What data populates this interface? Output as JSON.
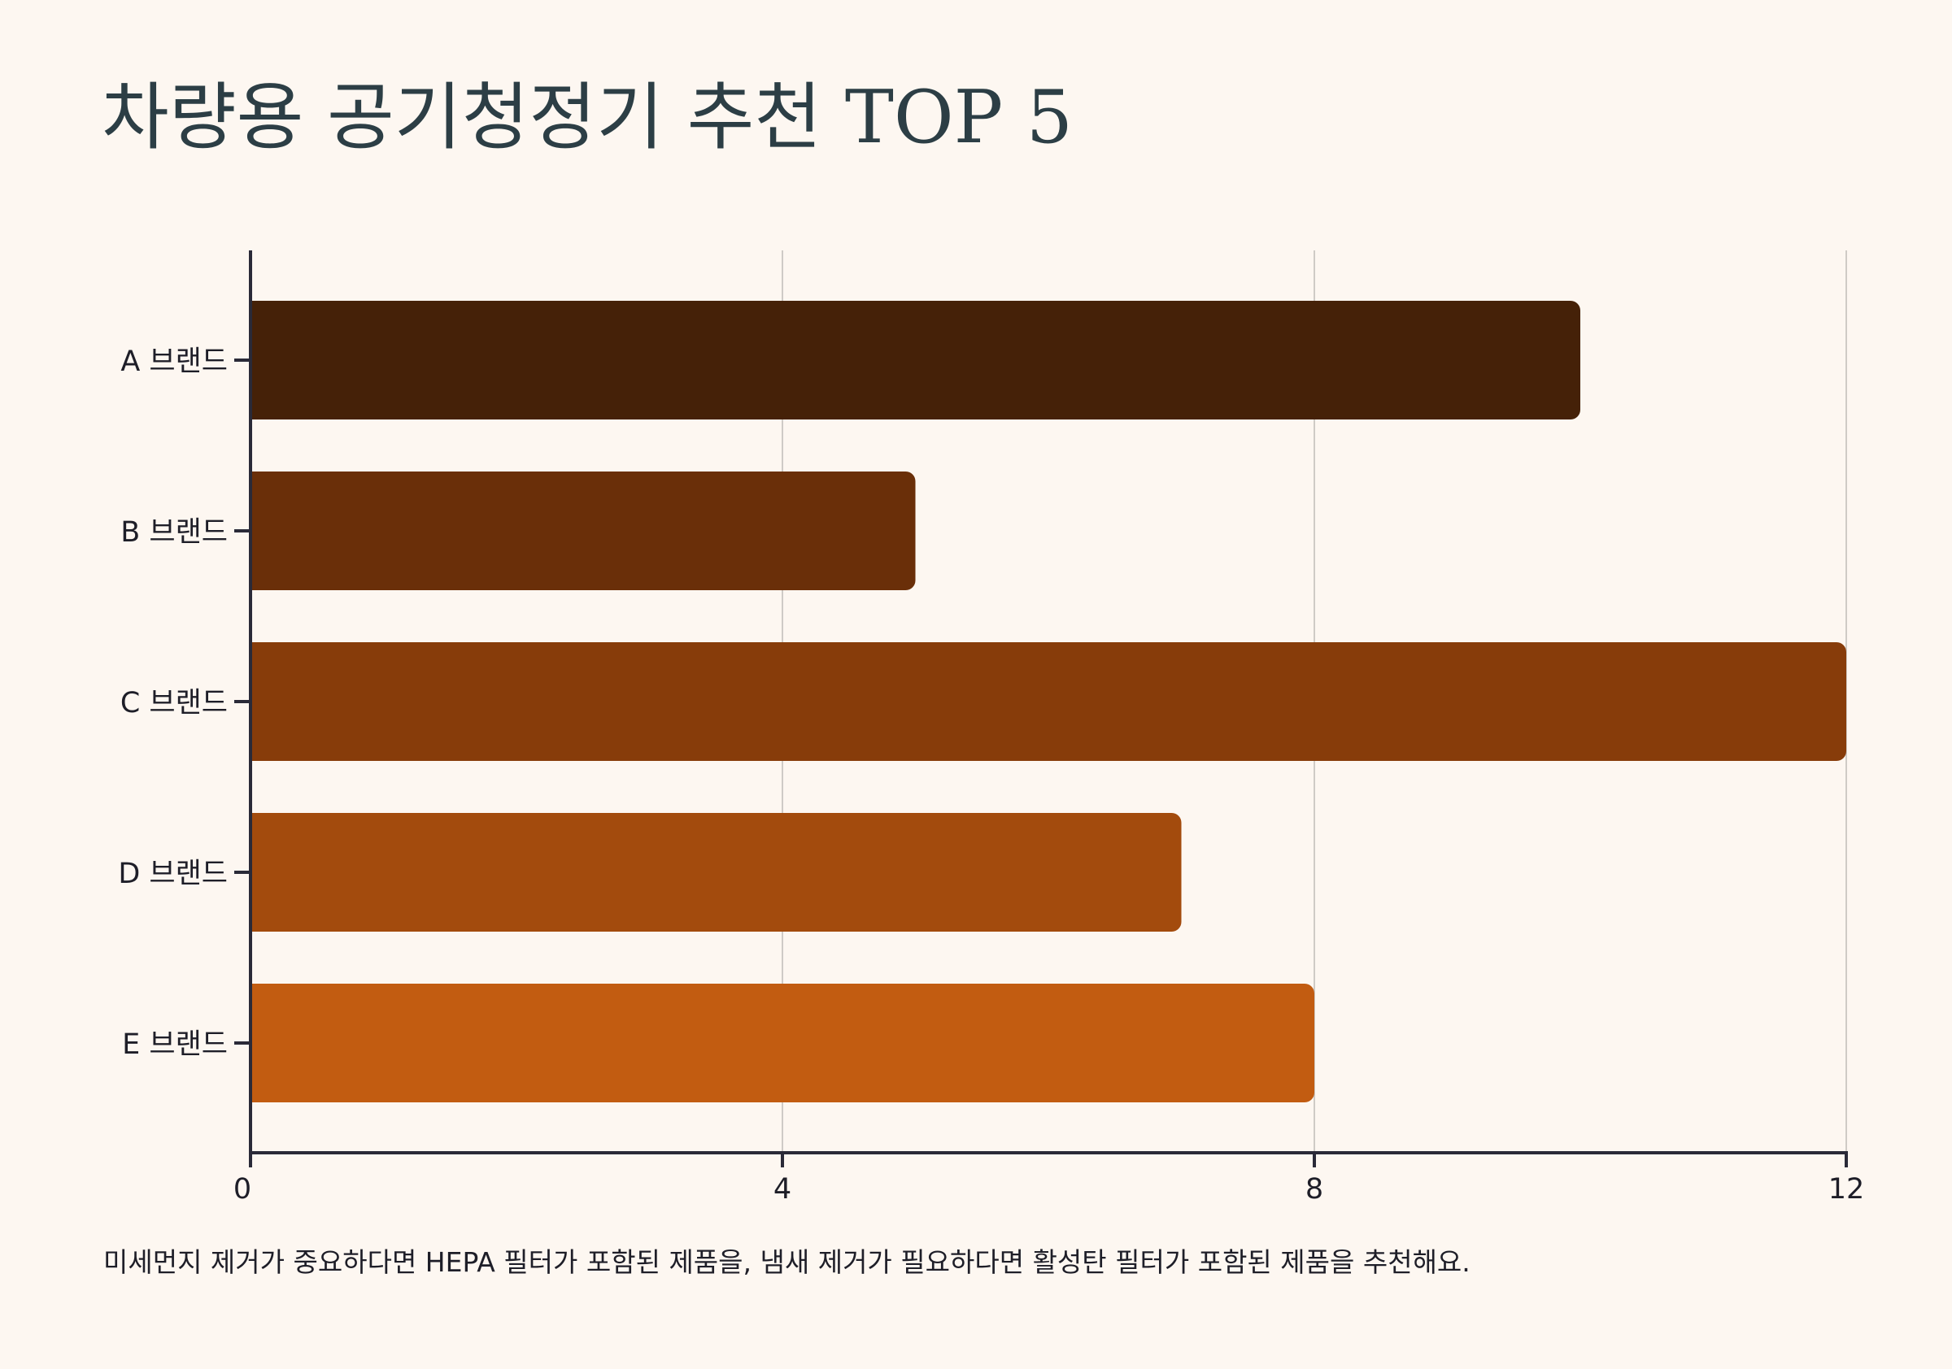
{
  "title": "차량용 공기청정기 추천 TOP 5",
  "footnote": "미세먼지 제거가 중요하다면 HEPA 필터가 포함된 제품을, 냄새 제거가 필요하다면 활성탄 필터가 포함된 제품을 추천해요.",
  "chart_data": {
    "type": "bar",
    "orientation": "horizontal",
    "title": "차량용 공기청정기 추천 TOP 5",
    "xlabel": "",
    "ylabel": "",
    "categories": [
      "A 브랜드",
      "B 브랜드",
      "C 브랜드",
      "D 브랜드",
      "E 브랜드"
    ],
    "values": [
      10,
      5,
      12,
      7,
      8
    ],
    "colors": [
      "#452108",
      "#6a2f09",
      "#873c0a",
      "#a34b0d",
      "#c25c11"
    ],
    "xlim": [
      0,
      12
    ],
    "xticks": [
      0,
      4,
      8,
      12
    ],
    "xtick_labels": [
      "0",
      "4",
      "8",
      "12"
    ],
    "grid": "vertical",
    "legend": "none"
  },
  "colors": {
    "background": "#fdf7f1",
    "title": "#2c3e45",
    "axis": "#2a2a38",
    "grid": "#cfcbc6",
    "text": "#1e1e28"
  }
}
